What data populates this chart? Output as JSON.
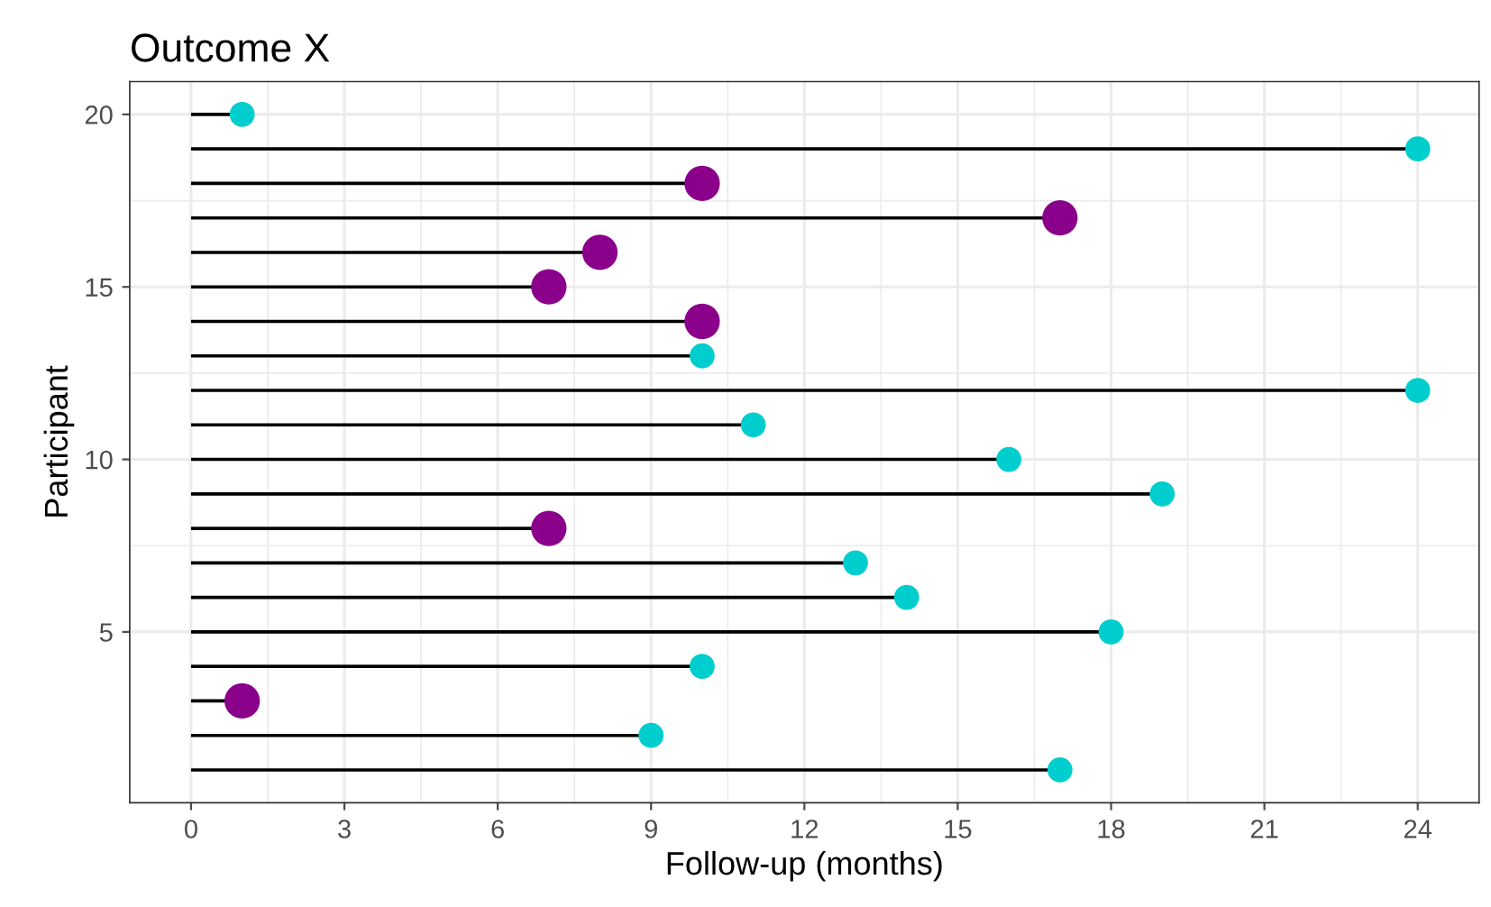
{
  "chart_data": {
    "type": "lollipop",
    "orientation": "horizontal",
    "title": "Outcome X",
    "xlabel": "Follow-up (months)",
    "ylabel": "Participant",
    "series": [
      {
        "color": "#00cdcd",
        "x": [
          20,
          19,
          13,
          12,
          11,
          10,
          9,
          7,
          6,
          5,
          4,
          2,
          1
        ],
        "values": [
          1,
          24,
          10,
          24,
          11,
          16,
          19,
          13,
          14,
          18,
          10,
          9,
          17
        ],
        "sizes": [
          0.5,
          0.5,
          0.5,
          0.5,
          0.5,
          0.5,
          0.5,
          0.5,
          0.5,
          0.5,
          0.5,
          0.5,
          0.5
        ]
      },
      {
        "color": "#8b008b",
        "x": [
          18,
          17,
          16,
          15,
          14,
          8,
          3
        ],
        "values": [
          10,
          17,
          8,
          7,
          10,
          7,
          1
        ],
        "sizes": [
          1,
          1,
          1,
          1,
          1,
          1,
          1
        ]
      }
    ],
    "xlim": [
      -1.2,
      25.2
    ],
    "xticks": [
      0,
      3,
      6,
      9,
      12,
      15,
      18,
      21,
      24
    ],
    "ylim": [
      0.05,
      20.95
    ],
    "yticks": [
      5,
      10,
      15,
      20
    ],
    "grid": true,
    "marker": "circle"
  }
}
